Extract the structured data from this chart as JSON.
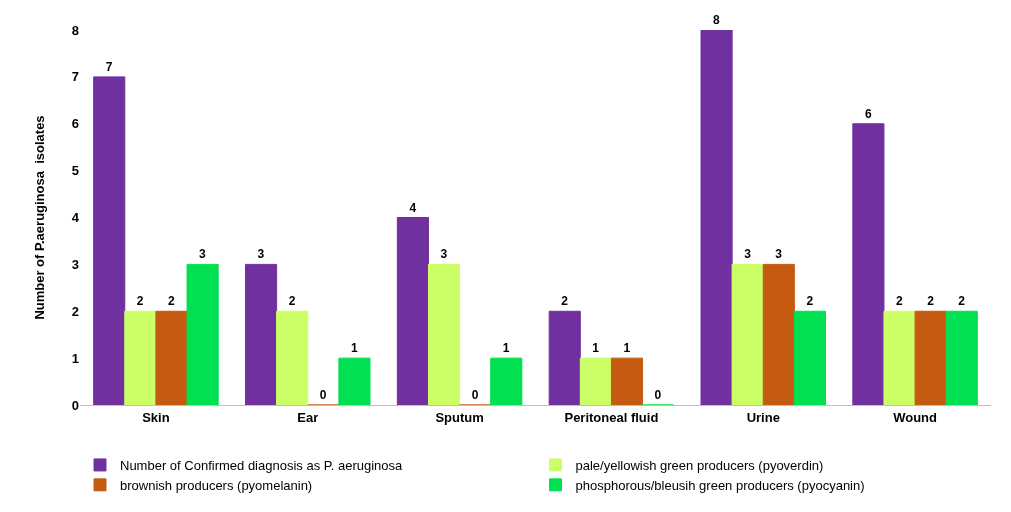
{
  "chart_data": {
    "type": "bar",
    "ylabel": "Number of P.aeruginosa  isolates",
    "categories": [
      "Skin",
      "Ear",
      "Sputum",
      "Peritoneal fluid",
      "Urine",
      "Wound"
    ],
    "series": [
      {
        "name": "Number of Confirmed diagnosis as P. aeruginosa",
        "color": "#7030a0",
        "values": [
          7,
          3,
          4,
          2,
          8,
          6
        ]
      },
      {
        "name": "pale/yellowish green producers (pyoverdin)",
        "color": "#ccff66",
        "values": [
          2,
          2,
          3,
          1,
          3,
          2
        ]
      },
      {
        "name": "brownish producers (pyomelanin)",
        "color": "#c55a11",
        "values": [
          2,
          0,
          0,
          1,
          3,
          2
        ]
      },
      {
        "name": "phosphorous/bleusih green producers (pyocyanin)",
        "color": "#00e050",
        "values": [
          3,
          1,
          1,
          0,
          2,
          2
        ]
      }
    ],
    "ylim": [
      0,
      8
    ],
    "yticks": [
      0,
      1,
      2,
      3,
      4,
      5,
      6,
      7,
      8
    ],
    "legend": "bottom",
    "data_labels": true
  }
}
